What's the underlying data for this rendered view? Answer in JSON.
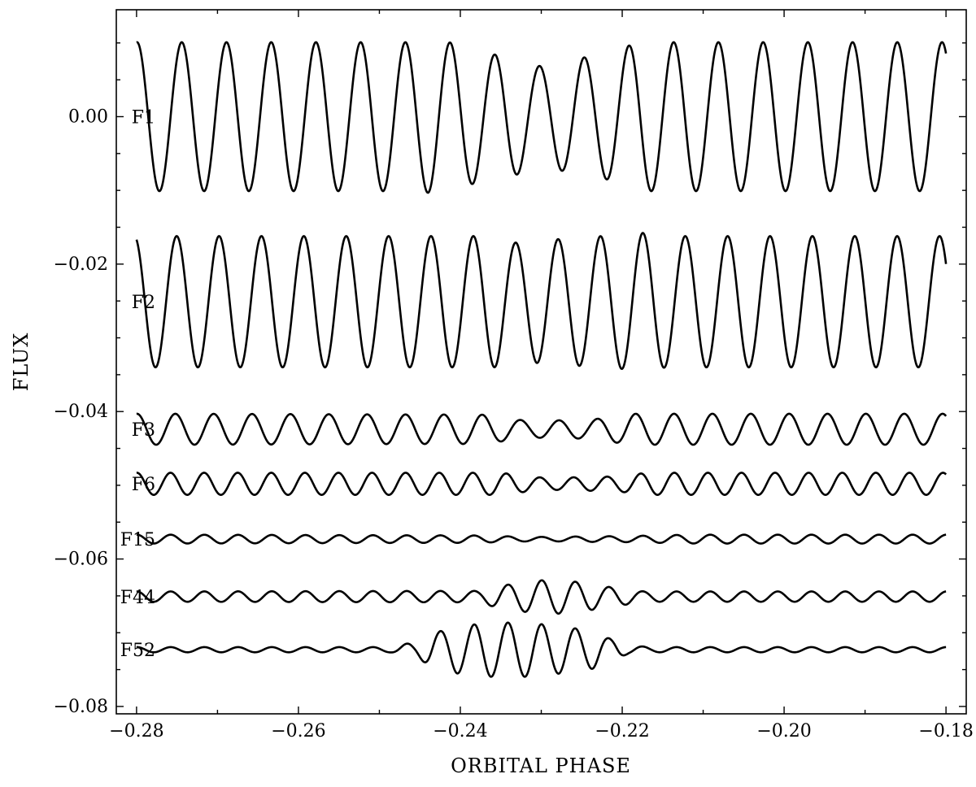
{
  "chart_data": {
    "type": "line",
    "title": "",
    "xlabel": "ORBITAL PHASE",
    "ylabel": "FLUX",
    "xlim": [
      -0.2825,
      -0.1775
    ],
    "ylim": [
      -0.081,
      0.0145
    ],
    "xticks": [
      -0.28,
      -0.26,
      -0.24,
      -0.22,
      -0.2,
      -0.18
    ],
    "xtick_labels": [
      "−0.28",
      "−0.26",
      "−0.24",
      "−0.22",
      "−0.20",
      "−0.18"
    ],
    "yticks": [
      0.0,
      -0.02,
      -0.04,
      -0.06,
      -0.08
    ],
    "ytick_labels": [
      "0.00",
      "−0.02",
      "−0.04",
      "−0.06",
      "−0.08"
    ],
    "grid": false,
    "legend": "none",
    "series": [
      {
        "name": "F1",
        "offset": 0.0,
        "amplitude": 0.0101,
        "cycles": 18.1,
        "phase0": 1.5,
        "envelope": [
          [
            -0.28,
            1.0
          ],
          [
            -0.245,
            1.0
          ],
          [
            -0.2435,
            1.03
          ],
          [
            -0.235,
            0.83
          ],
          [
            -0.23,
            0.68
          ],
          [
            -0.224,
            0.8
          ],
          [
            -0.217,
            1.0
          ],
          [
            -0.18,
            1.0
          ]
        ]
      },
      {
        "name": "F2",
        "offset": -0.0251,
        "amplitude": 0.0089,
        "cycles": 19.1,
        "phase0": 1.9,
        "envelope": [
          [
            -0.28,
            1.0
          ],
          [
            -0.236,
            1.0
          ],
          [
            -0.233,
            0.9
          ],
          [
            -0.229,
            0.95
          ],
          [
            -0.222,
            1.0
          ],
          [
            -0.218,
            1.05
          ],
          [
            -0.214,
            1.0
          ],
          [
            -0.18,
            1.0
          ]
        ]
      },
      {
        "name": "F3",
        "offset": -0.0424,
        "amplitude": 0.0021,
        "cycles": 21.1,
        "phase0": 1.5,
        "envelope": [
          [
            -0.28,
            1.0
          ],
          [
            -0.238,
            0.95
          ],
          [
            -0.231,
            0.55
          ],
          [
            -0.225,
            0.6
          ],
          [
            -0.218,
            1.0
          ],
          [
            -0.18,
            1.0
          ]
        ]
      },
      {
        "name": "F6",
        "offset": -0.0498,
        "amplitude": 0.0015,
        "cycles": 24.1,
        "phase0": 1.5,
        "envelope": [
          [
            -0.28,
            1.0
          ],
          [
            -0.236,
            1.0
          ],
          [
            -0.229,
            0.55
          ],
          [
            -0.222,
            0.65
          ],
          [
            -0.216,
            1.0
          ],
          [
            -0.18,
            1.0
          ]
        ]
      },
      {
        "name": "F15",
        "offset": -0.0573,
        "amplitude": 0.0006,
        "cycles": 24.0,
        "phase0": 1.5,
        "envelope": [
          [
            -0.28,
            1.0
          ],
          [
            -0.24,
            0.85
          ],
          [
            -0.23,
            0.5
          ],
          [
            -0.222,
            0.65
          ],
          [
            -0.21,
            1.0
          ],
          [
            -0.18,
            1.0
          ]
        ]
      },
      {
        "name": "F44",
        "offset": -0.0651,
        "amplitude": 0.0007,
        "cycles": 24.0,
        "phase0": 1.5,
        "envelope": [
          [
            -0.28,
            1.0
          ],
          [
            -0.238,
            1.1
          ],
          [
            -0.235,
            2.2
          ],
          [
            -0.231,
            3.1
          ],
          [
            -0.228,
            3.3
          ],
          [
            -0.225,
            2.8
          ],
          [
            -0.221,
            1.8
          ],
          [
            -0.217,
            1.0
          ],
          [
            -0.18,
            1.0
          ]
        ]
      },
      {
        "name": "F52",
        "offset": -0.0723,
        "amplitude": 0.00035,
        "cycles": 24.0,
        "phase0": 1.5,
        "envelope": [
          [
            -0.28,
            1.0
          ],
          [
            -0.249,
            1.0
          ],
          [
            -0.246,
            2.5
          ],
          [
            -0.243,
            7.0
          ],
          [
            -0.24,
            9.3
          ],
          [
            -0.236,
            10.5
          ],
          [
            -0.232,
            10.5
          ],
          [
            -0.228,
            9.3
          ],
          [
            -0.224,
            7.5
          ],
          [
            -0.221,
            4.0
          ],
          [
            -0.219,
            1.5
          ],
          [
            -0.216,
            1.0
          ],
          [
            -0.18,
            1.0
          ]
        ]
      }
    ]
  }
}
